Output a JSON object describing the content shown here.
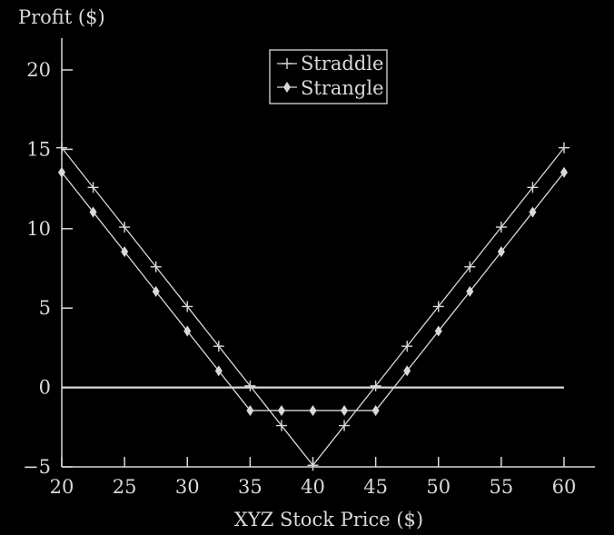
{
  "chart_data": {
    "type": "line",
    "title": "",
    "ylabel": "Profit ($)",
    "xlabel": "XYZ Stock Price ($)",
    "xlim": [
      20,
      60
    ],
    "ylim": [
      -5,
      20
    ],
    "xticks": [
      20,
      25,
      30,
      35,
      40,
      45,
      50,
      55,
      60
    ],
    "yticks": [
      -5,
      0,
      5,
      10,
      15,
      20
    ],
    "grid": false,
    "legend_position": "top-center",
    "zero_line": true,
    "x": [
      20,
      22.5,
      25,
      27.5,
      30,
      32.5,
      35,
      37.5,
      40,
      42.5,
      45,
      47.5,
      50,
      52.5,
      55,
      57.5,
      60
    ],
    "series": [
      {
        "name": "Straddle",
        "marker": "plus",
        "values": [
          15.1,
          12.6,
          10.1,
          7.6,
          5.1,
          2.6,
          0.1,
          -2.4,
          -4.9,
          -2.4,
          0.1,
          2.6,
          5.1,
          7.6,
          10.1,
          12.6,
          15.1
        ]
      },
      {
        "name": "Strangle",
        "marker": "diamond",
        "values": [
          13.55,
          11.05,
          8.55,
          6.05,
          3.55,
          1.05,
          -1.45,
          -1.45,
          -1.45,
          -1.45,
          -1.45,
          1.05,
          3.55,
          6.05,
          8.55,
          11.05,
          13.55
        ]
      }
    ],
    "colors": {
      "background": "#000000",
      "foreground": "#d9d9d9"
    }
  }
}
